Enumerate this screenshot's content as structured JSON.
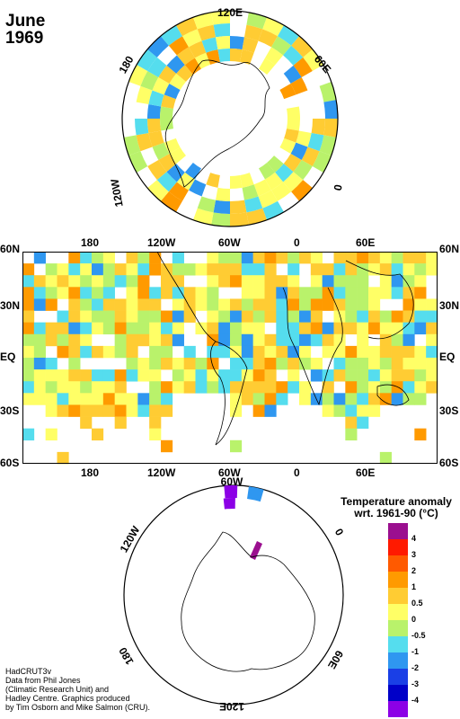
{
  "header": {
    "month": "June",
    "year": "1969"
  },
  "north_polar": {
    "labels": {
      "top": "120E",
      "upper_right": "60E",
      "right": "0",
      "left": "180",
      "lower_left": "120W"
    }
  },
  "main_map": {
    "top_lon_labels": [
      "180",
      "120W",
      "60W",
      "0",
      "60E"
    ],
    "bottom_lon_labels": [
      "180",
      "120W",
      "60W",
      "0",
      "60E"
    ],
    "lat_labels": [
      "60N",
      "30N",
      "EQ",
      "30S",
      "60S"
    ]
  },
  "south_polar": {
    "labels": {
      "upper_left": "120W",
      "top": "60W",
      "upper_right": "0",
      "lower_left": "180",
      "lower_right": "60E",
      "bottom": "120E"
    }
  },
  "legend": {
    "title_line1": "Temperature anomaly",
    "title_line2": "wrt. 1961-90  (°C)",
    "labels": [
      "4",
      "3",
      "2",
      "1",
      "0.5",
      "0",
      "-0.5",
      "-1",
      "-2",
      "-3",
      "-4"
    ],
    "colors": [
      "#9b0f8f",
      "#ff1a00",
      "#ff5a00",
      "#ff9a00",
      "#ffcc33",
      "#ffff66",
      "#b9f26b",
      "#55ddee",
      "#2f97f0",
      "#1a3fe6",
      "#0000c8",
      "#8c00e6"
    ]
  },
  "credits": {
    "line1": "HadCRUT3v",
    "line2": "Data from Phil Jones",
    "line3": "(Climatic Research Unit) and",
    "line4": "Hadley Centre.  Graphics produced",
    "line5": "by Tim Osborn and Mike Salmon (CRU)."
  }
}
